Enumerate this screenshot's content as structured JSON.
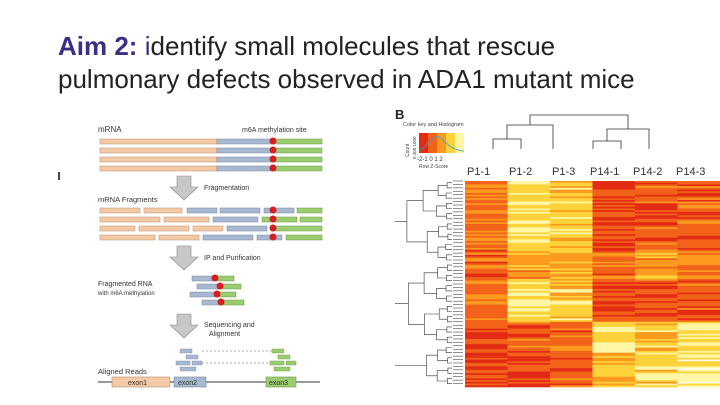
{
  "slide": {
    "title_aim": "Aim 2:",
    "title_i": "i",
    "title_rest": "dentify small molecules that rescue pulmonary defects observed in ADA1 mutant mice"
  },
  "figure_a": {
    "mrna_label": "mRNA",
    "m6a_site_label": "m6A methylation site",
    "step1_label": "Fragmentation",
    "fragments_label": "mRNA Fragments",
    "step2_label": "IP and Purification",
    "fragmented_label_1": "Fragmented RNA",
    "fragmented_label_2": "with m6A methylation",
    "step3_label_1": "Sequencing and",
    "step3_label_2": "Alignment",
    "aligned_label": "Aligned Reads",
    "exon1": "exon1",
    "exon2": "exon2",
    "exon3": "exon3",
    "colors": {
      "exon1": "#f3c9a6",
      "exon2": "#a8b8d0",
      "exon3": "#9ccc70",
      "m6a": "#d42020"
    }
  },
  "figure_b": {
    "panel_letter": "B",
    "key_title": "Color key and Histogram",
    "key_ylabel": "Count",
    "key_yticks": "0 400 1000",
    "key_xticks": "-2-1 0 1 2",
    "key_xlabel": "Row Z-Score",
    "columns": [
      "P1-1",
      "P1-2",
      "P1-3",
      "P14-1",
      "P14-2",
      "P14-3"
    ],
    "colormap": [
      "#e32b14",
      "#f26218",
      "#fb9a1e",
      "#fdd23a",
      "#fff6a6",
      "#fffde8"
    ]
  }
}
